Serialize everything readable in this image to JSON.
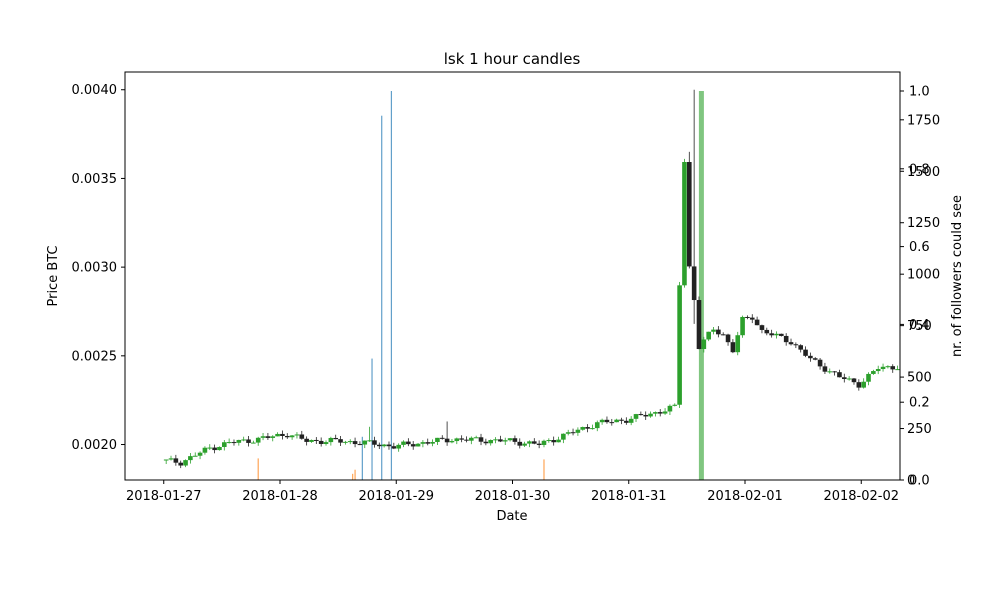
{
  "chart_data": {
    "type": "candlestick",
    "title": "lsk 1 hour candles",
    "xlabel": "Date",
    "ylabel": "Price BTC",
    "ylabel_right": "nr. of followers could see",
    "x_ticks": [
      "2018-01-27",
      "2018-01-28",
      "2018-01-29",
      "2018-01-30",
      "2018-01-31",
      "2018-02-01",
      "2018-02-02"
    ],
    "x_range": [
      "2018-01-26T16:00",
      "2018-02-02T08:00"
    ],
    "ylim": [
      0.0018,
      0.0041
    ],
    "y_ticks": [
      "0.0020",
      "0.0025",
      "0.0030",
      "0.0035",
      "0.0040"
    ],
    "right_axis_ticks_followers": [
      "0",
      "250",
      "500",
      "750",
      "1000",
      "1250",
      "1500",
      "1750"
    ],
    "right_axis_ticks_fraction": [
      "0.0",
      "0.2",
      "0.4",
      "0.6",
      "0.8",
      "1.0"
    ],
    "grid": false,
    "up_color": "#2ca02c",
    "down_color": "#222222",
    "price_anchors": [
      [
        "2018-01-27T00:00",
        0.00191
      ],
      [
        "2018-01-27T04:00",
        0.0019
      ],
      [
        "2018-01-27T10:00",
        0.00198
      ],
      [
        "2018-01-27T14:00",
        0.00201
      ],
      [
        "2018-01-27T20:00",
        0.00203
      ],
      [
        "2018-01-28T02:00",
        0.00206
      ],
      [
        "2018-01-28T06:00",
        0.00202
      ],
      [
        "2018-01-28T12:00",
        0.00202
      ],
      [
        "2018-01-28T18:00",
        0.00201
      ],
      [
        "2018-01-29T00:00",
        0.00199
      ],
      [
        "2018-01-29T06:00",
        0.00201
      ],
      [
        "2018-01-29T12:00",
        0.00203
      ],
      [
        "2018-01-30T00:00",
        0.00202
      ],
      [
        "2018-01-30T06:00",
        0.002
      ],
      [
        "2018-01-30T12:00",
        0.00206
      ],
      [
        "2018-01-30T18:00",
        0.00212
      ],
      [
        "2018-01-31T00:00",
        0.00214
      ],
      [
        "2018-01-31T06:00",
        0.00218
      ],
      [
        "2018-01-31T10:00",
        0.00221
      ],
      [
        "2018-01-31T12:00",
        0.0036
      ],
      [
        "2018-01-31T13:00",
        0.003
      ],
      [
        "2018-01-31T14:00",
        0.00282
      ],
      [
        "2018-01-31T15:00",
        0.00255
      ],
      [
        "2018-01-31T18:00",
        0.00265
      ],
      [
        "2018-01-31T20:00",
        0.00262
      ],
      [
        "2018-01-31T22:00",
        0.00253
      ],
      [
        "2018-02-01T00:00",
        0.0027
      ],
      [
        "2018-02-01T02:00",
        0.00272
      ],
      [
        "2018-02-01T04:00",
        0.00264
      ],
      [
        "2018-02-01T10:00",
        0.00258
      ],
      [
        "2018-02-01T14:00",
        0.00248
      ],
      [
        "2018-02-01T20:00",
        0.00238
      ],
      [
        "2018-02-02T00:00",
        0.00234
      ],
      [
        "2018-02-02T04:00",
        0.00243
      ],
      [
        "2018-02-02T08:00",
        0.00244
      ]
    ],
    "followers_bars": [
      {
        "time": "2018-01-28T17:00",
        "followers": 210,
        "color": "#1f77b4"
      },
      {
        "time": "2018-01-28T19:00",
        "followers": 590,
        "color": "#1f77b4"
      },
      {
        "time": "2018-01-28T21:00",
        "followers": 1770,
        "color": "#1f77b4"
      },
      {
        "time": "2018-01-28T23:00",
        "followers": 1890,
        "color": "#1f77b4"
      },
      {
        "time": "2018-01-27T19:30",
        "followers": 105,
        "color": "#ff7f0e"
      },
      {
        "time": "2018-01-28T15:00",
        "followers": 30,
        "color": "#ff7f0e"
      },
      {
        "time": "2018-01-28T15:30",
        "followers": 50,
        "color": "#ff7f0e"
      },
      {
        "time": "2018-01-30T06:30",
        "followers": 100,
        "color": "#ff7f0e"
      }
    ],
    "fraction_bar": {
      "time": "2018-01-31T15:00",
      "value": 1.0,
      "color": "#2ca02c"
    }
  }
}
